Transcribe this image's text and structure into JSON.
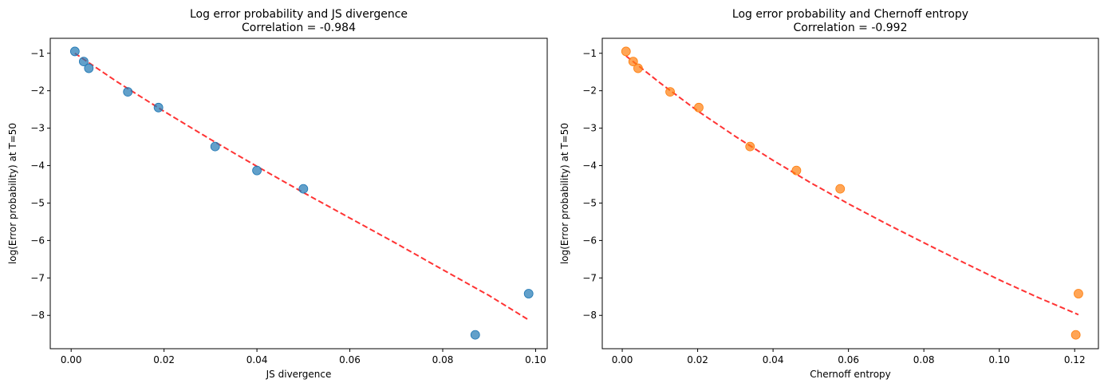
{
  "chart_data": [
    {
      "type": "scatter",
      "title": "Log error probability and JS divergence",
      "subtitle": "Correlation = -0.984",
      "xlabel": "JS divergence",
      "ylabel": "log(Error probability) at T=50",
      "xlim": [
        -0.0045,
        0.1025
      ],
      "ylim": [
        -8.89,
        -0.6
      ],
      "xticks": [
        "0.00",
        "0.02",
        "0.04",
        "0.06",
        "0.08",
        "0.10"
      ],
      "xtick_values": [
        0.0,
        0.02,
        0.04,
        0.06,
        0.08,
        0.1
      ],
      "yticks": [
        "−8",
        "−7",
        "−6",
        "−5",
        "−4",
        "−3",
        "−2",
        "−1"
      ],
      "ytick_values": [
        -8,
        -7,
        -6,
        -5,
        -4,
        -3,
        -2,
        -1
      ],
      "grid": false,
      "point_color": "#1f77b4",
      "fit_color": "#ff0000",
      "points": [
        {
          "x": 0.0008,
          "y": -0.95
        },
        {
          "x": 0.0027,
          "y": -1.22
        },
        {
          "x": 0.0038,
          "y": -1.4
        },
        {
          "x": 0.0122,
          "y": -2.03
        },
        {
          "x": 0.0188,
          "y": -2.45
        },
        {
          "x": 0.031,
          "y": -3.49
        },
        {
          "x": 0.04,
          "y": -4.13
        },
        {
          "x": 0.05,
          "y": -4.62
        },
        {
          "x": 0.087,
          "y": -8.52
        },
        {
          "x": 0.0985,
          "y": -7.42
        }
      ],
      "fit": {
        "style": "dashed",
        "x": [
          0.0008,
          0.01,
          0.02,
          0.03,
          0.04,
          0.05,
          0.06,
          0.07,
          0.08,
          0.09,
          0.0985
        ],
        "y": [
          -1.0,
          -1.77,
          -2.55,
          -3.3,
          -4.02,
          -4.72,
          -5.4,
          -6.08,
          -6.78,
          -7.47,
          -8.12
        ]
      }
    },
    {
      "type": "scatter",
      "title": "Log error probability and Chernoff entropy",
      "subtitle": "Correlation = -0.992",
      "xlabel": "Chernoff entropy",
      "ylabel": "log(Error probability) at T=50",
      "xlim": [
        -0.0053,
        0.1263
      ],
      "ylim": [
        -8.89,
        -0.6
      ],
      "xticks": [
        "0.00",
        "0.02",
        "0.04",
        "0.06",
        "0.08",
        "0.10",
        "0.12"
      ],
      "xtick_values": [
        0.0,
        0.02,
        0.04,
        0.06,
        0.08,
        0.1,
        0.12
      ],
      "yticks": [
        "−8",
        "−7",
        "−6",
        "−5",
        "−4",
        "−3",
        "−2",
        "−1"
      ],
      "ytick_values": [
        -8,
        -7,
        -6,
        -5,
        -4,
        -3,
        -2,
        -1
      ],
      "grid": false,
      "point_color": "#ff7f0e",
      "fit_color": "#ff0000",
      "points": [
        {
          "x": 0.001,
          "y": -0.95
        },
        {
          "x": 0.0029,
          "y": -1.22
        },
        {
          "x": 0.0042,
          "y": -1.4
        },
        {
          "x": 0.0127,
          "y": -2.03
        },
        {
          "x": 0.0203,
          "y": -2.45
        },
        {
          "x": 0.0339,
          "y": -3.49
        },
        {
          "x": 0.0462,
          "y": -4.13
        },
        {
          "x": 0.0578,
          "y": -4.62
        },
        {
          "x": 0.1203,
          "y": -8.52
        },
        {
          "x": 0.121,
          "y": -7.42
        }
      ],
      "fit": {
        "style": "dashed",
        "x": [
          0.001,
          0.01,
          0.02,
          0.03,
          0.04,
          0.05,
          0.06,
          0.07,
          0.08,
          0.09,
          0.1,
          0.11,
          0.121
        ],
        "y": [
          -1.07,
          -1.79,
          -2.54,
          -3.22,
          -3.86,
          -4.46,
          -5.02,
          -5.55,
          -6.06,
          -6.56,
          -7.05,
          -7.51,
          -7.98
        ]
      }
    }
  ]
}
